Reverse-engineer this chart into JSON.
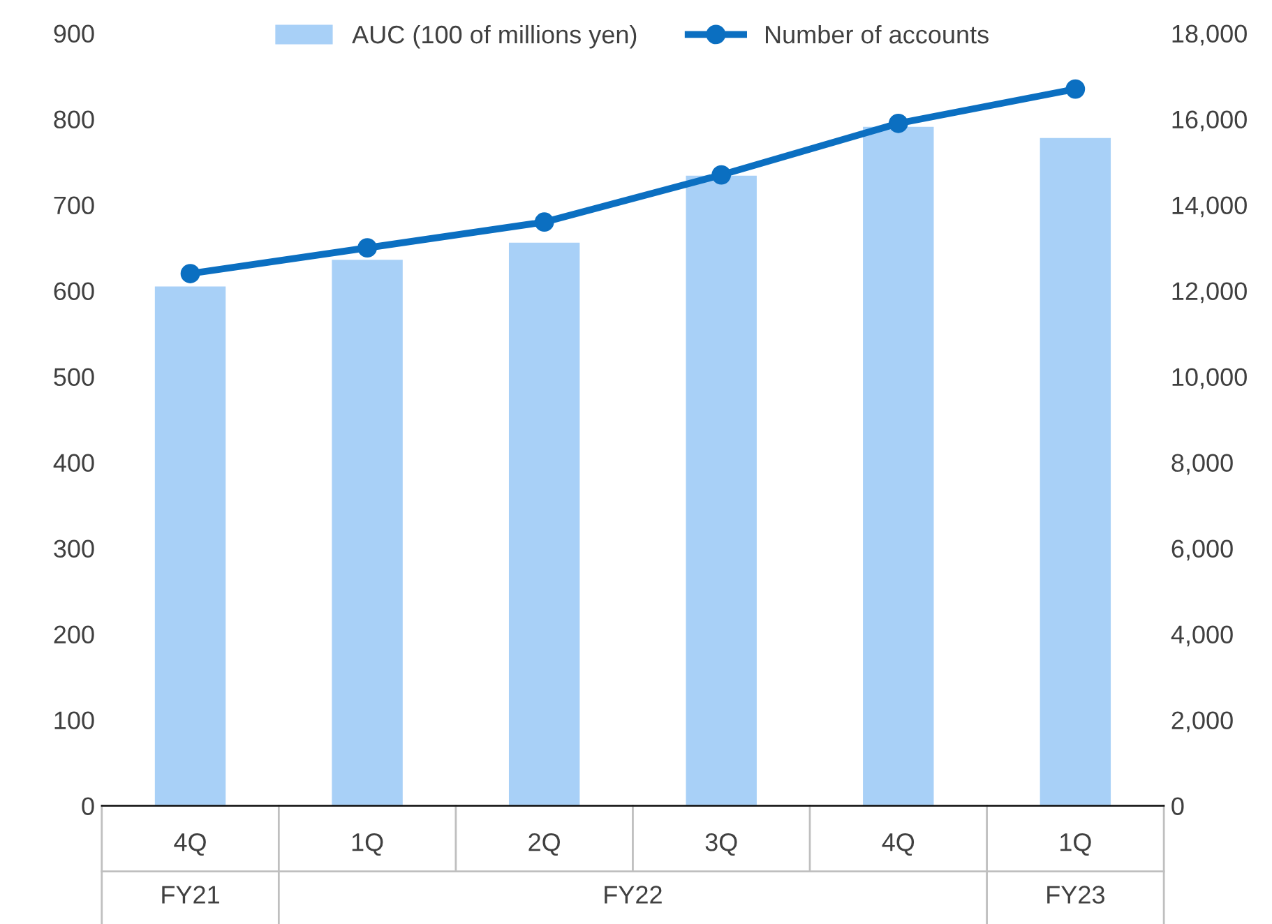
{
  "chart_data": {
    "type": "bar",
    "categories": [
      "4Q",
      "1Q",
      "2Q",
      "3Q",
      "4Q",
      "1Q"
    ],
    "series": [
      {
        "name": "AUC (100 of millions yen)",
        "color": "#a8d0f7",
        "values": [
          605,
          636,
          656,
          734,
          791,
          778
        ]
      },
      {
        "name": "Number of accounts",
        "type": "line",
        "axis": "y2",
        "color": "#0b6fc1",
        "marker": "circle",
        "values": [
          12400,
          13000,
          13600,
          14700,
          15900,
          16700
        ]
      }
    ],
    "ylim": [
      0,
      900
    ],
    "yticks": [
      0,
      100,
      200,
      300,
      400,
      500,
      600,
      700,
      800,
      900
    ],
    "y2lim": [
      0,
      18000
    ],
    "y2ticks": [
      {
        "value": 0,
        "label": "0"
      },
      {
        "value": 2000,
        "label": "2,000"
      },
      {
        "value": 4000,
        "label": "4,000"
      },
      {
        "value": 6000,
        "label": "6,000"
      },
      {
        "value": 8000,
        "label": "8,000"
      },
      {
        "value": 10000,
        "label": "10,000"
      },
      {
        "value": 12000,
        "label": "12,000"
      },
      {
        "value": 14000,
        "label": "14,000"
      },
      {
        "value": 16000,
        "label": "16,000"
      },
      {
        "value": 18000,
        "label": "18,000"
      }
    ],
    "annotations": [
      "FY21",
      "FY22",
      "FY23"
    ],
    "legend": "top",
    "grid": false
  }
}
